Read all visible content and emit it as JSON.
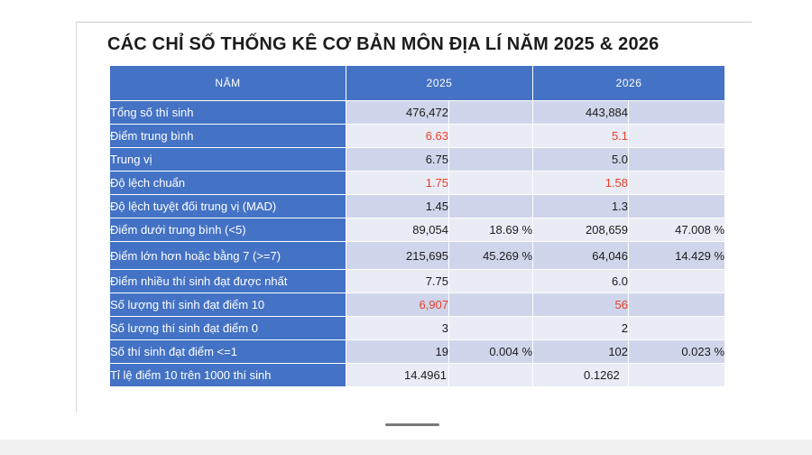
{
  "title": "CÁC CHỈ SỐ THỐNG KÊ CƠ BẢN MÔN ĐỊA LÍ NĂM 2025 & 2026",
  "header": {
    "year_label": "NĂM",
    "y1": "2025",
    "y2": "2026"
  },
  "colors": {
    "header_blue": "#4472c4",
    "row_dark": "#cfd5ea",
    "row_light": "#e9ebf5",
    "highlight_red": "#e8402a"
  },
  "rows": [
    {
      "label": "Tổng số thí sinh",
      "v1": "476,472",
      "p1": "",
      "v2": "443,884",
      "p2": ""
    },
    {
      "label": "Điểm trung bình",
      "v1": "6.63",
      "p1": "",
      "v2": "5.1",
      "p2": ""
    },
    {
      "label": "Trung vị",
      "v1": "6.75",
      "p1": "",
      "v2": "5.0",
      "p2": ""
    },
    {
      "label": "Độ lệch chuẩn",
      "v1": "1.75",
      "p1": "",
      "v2": "1.58",
      "p2": ""
    },
    {
      "label": "Độ lệch tuyệt đối trung vị (MAD)",
      "v1": "1.45",
      "p1": "",
      "v2": "1.3",
      "p2": ""
    },
    {
      "label": "Điểm dưới trung bình (<5)",
      "v1": "89,054",
      "p1": "18.69 %",
      "v2": "208,659",
      "p2": "47.008 %"
    },
    {
      "label": "Điểm lớn hơn hoặc bằng 7 (>=7)",
      "v1": "215,695",
      "p1": "45.269 %",
      "v2": "64,046",
      "p2": "14.429 %"
    },
    {
      "label": "Điểm nhiều thí sinh đạt được nhất",
      "v1": "7.75",
      "p1": "",
      "v2": "6.0",
      "p2": ""
    },
    {
      "label": "Số lượng thí sinh đạt điểm 10",
      "v1": "6,907",
      "p1": "",
      "v2": "56",
      "p2": ""
    },
    {
      "label": "Số lượng thí sinh đạt điểm 0",
      "v1": "3",
      "p1": "",
      "v2": "2",
      "p2": ""
    },
    {
      "label": "Số thí sinh đạt điểm <=1",
      "v1": "19",
      "p1": "0.004 %",
      "v2": "102",
      "p2": "0.023 %"
    },
    {
      "label": "Tỉ lệ điểm 10 trên 1000 thí sinh",
      "v1": "14.4961",
      "p1": "",
      "v2": "0.1262",
      "p2": ""
    }
  ]
}
